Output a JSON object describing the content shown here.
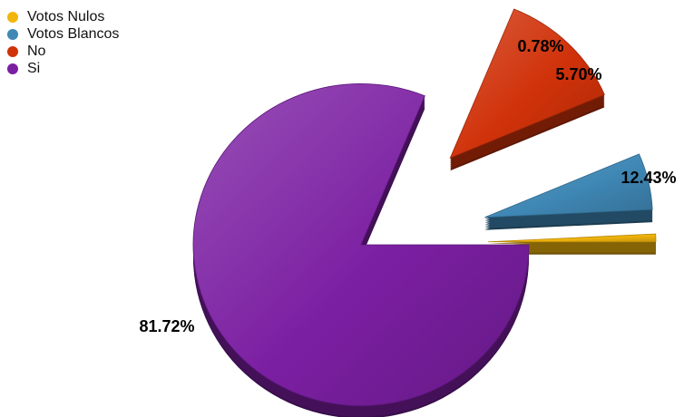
{
  "chart_data": {
    "type": "pie",
    "categories": [
      "Votos Nulos",
      "Votos Blancos",
      "No",
      "Si"
    ],
    "values": [
      0.78,
      5.7,
      12.43,
      81.72
    ],
    "value_labels": [
      "0.78%",
      "5.70%",
      "12.43%",
      "81.72%"
    ],
    "colors": [
      "#f2b50c",
      "#3f87b5",
      "#d0320a",
      "#7b1fa2"
    ],
    "legend_position": "top-left",
    "exploded": true,
    "three_d": true
  }
}
